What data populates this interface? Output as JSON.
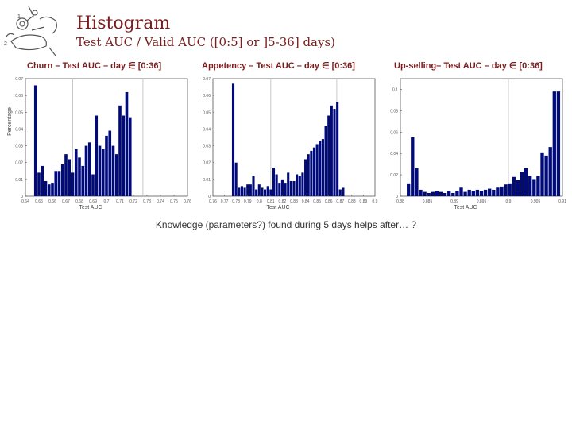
{
  "title": "Histogram",
  "subtitle": "Test AUC / Valid AUC ([0:5] or ]5-36] days)",
  "caption": "Knowledge (parameters?) found during 5 days helps after… ?",
  "colors": {
    "bar": "#000a78",
    "title": "#7a1d1d",
    "vline": "#bbbbbb"
  },
  "icons": {
    "logo": "cartoon-drawing-icon"
  },
  "chart_data": [
    {
      "type": "bar",
      "title": "Churn – Test AUC – day ∈ [0:36]",
      "xlabel": "Test AUC",
      "ylabel": "Percentage",
      "xlim": [
        0.64,
        0.76
      ],
      "ylim": [
        0,
        0.07
      ],
      "xticks": [
        "0.64",
        "0.65",
        "0.66",
        "0.67",
        "0.68",
        "0.69",
        "0.7",
        "0.71",
        "0.72",
        "0.73",
        "0.74",
        "0.75",
        "0.76"
      ],
      "yticks": [
        "0",
        "0.01",
        "0.02",
        "0.03",
        "0.04",
        "0.05",
        "0.06",
        "0.07"
      ],
      "vlines": [
        0.675,
        0.727
      ],
      "x": [
        0.6475,
        0.65,
        0.6525,
        0.655,
        0.6575,
        0.66,
        0.6625,
        0.665,
        0.6675,
        0.67,
        0.6725,
        0.675,
        0.6775,
        0.68,
        0.6825,
        0.685,
        0.6875,
        0.69,
        0.6925,
        0.695,
        0.6975,
        0.7,
        0.7025,
        0.705,
        0.7075,
        0.71,
        0.7125,
        0.715,
        0.7175
      ],
      "values": [
        0.066,
        0.014,
        0.018,
        0.009,
        0.007,
        0.008,
        0.015,
        0.015,
        0.019,
        0.025,
        0.022,
        0.014,
        0.028,
        0.023,
        0.018,
        0.03,
        0.032,
        0.013,
        0.048,
        0.03,
        0.028,
        0.036,
        0.039,
        0.03,
        0.025,
        0.054,
        0.048,
        0.062,
        0.047
      ]
    },
    {
      "type": "bar",
      "title": "Appetency – Test AUC – day ∈ [0:36]",
      "xlabel": "Test AUC",
      "ylabel": "",
      "xlim": [
        0.76,
        0.9
      ],
      "ylim": [
        0,
        0.07
      ],
      "xticks": [
        "0.76",
        "0.77",
        "0.78",
        "0.79",
        "0.8",
        "0.81",
        "0.82",
        "0.83",
        "0.84",
        "0.85",
        "0.86",
        "0.87",
        "0.88",
        "0.89",
        "0.9"
      ],
      "yticks": [
        "0",
        "0.01",
        "0.02",
        "0.03",
        "0.04",
        "0.05",
        "0.06",
        "0.07"
      ],
      "vlines": [
        0.81,
        0.867
      ],
      "x": [
        0.7775,
        0.78,
        0.7825,
        0.785,
        0.7875,
        0.79,
        0.7925,
        0.795,
        0.7975,
        0.8,
        0.8025,
        0.805,
        0.8075,
        0.81,
        0.8125,
        0.815,
        0.8175,
        0.82,
        0.8225,
        0.825,
        0.8275,
        0.83,
        0.8325,
        0.835,
        0.8375,
        0.84,
        0.8425,
        0.845,
        0.8475,
        0.85,
        0.8525,
        0.855,
        0.8575,
        0.86,
        0.8625,
        0.865,
        0.8675,
        0.87,
        0.8725
      ],
      "values": [
        0.067,
        0.02,
        0.005,
        0.006,
        0.005,
        0.007,
        0.007,
        0.012,
        0.004,
        0.007,
        0.005,
        0.004,
        0.006,
        0.004,
        0.017,
        0.013,
        0.008,
        0.01,
        0.008,
        0.014,
        0.009,
        0.009,
        0.013,
        0.012,
        0.014,
        0.022,
        0.025,
        0.027,
        0.029,
        0.031,
        0.033,
        0.034,
        0.042,
        0.048,
        0.054,
        0.052,
        0.056,
        0.004,
        0.005
      ]
    },
    {
      "type": "bar",
      "title": "Up-selling– Test AUC – day ∈ [0:36]",
      "xlabel": "Test AUC",
      "ylabel": "",
      "xlim": [
        0.88,
        0.91
      ],
      "ylim": [
        0,
        0.11
      ],
      "xticks": [
        "0.88",
        "0.885",
        "0.89",
        "0.895",
        "0.9",
        "0.905",
        "0.91"
      ],
      "yticks": [
        "0",
        "0.02",
        "0.04",
        "0.06",
        "0.08",
        "0.1"
      ],
      "vlines": [
        0.9
      ],
      "x": [
        0.8815,
        0.88225,
        0.883,
        0.88375,
        0.8845,
        0.88525,
        0.886,
        0.88675,
        0.8875,
        0.88825,
        0.889,
        0.88975,
        0.8905,
        0.89125,
        0.892,
        0.89275,
        0.8935,
        0.89425,
        0.895,
        0.89575,
        0.8965,
        0.89725,
        0.898,
        0.89875,
        0.8995,
        0.90025,
        0.901,
        0.90175,
        0.9025,
        0.90325,
        0.904,
        0.90475,
        0.9055,
        0.90625,
        0.907,
        0.90775,
        0.9085,
        0.90925
      ],
      "values": [
        0.012,
        0.055,
        0.026,
        0.006,
        0.004,
        0.003,
        0.004,
        0.005,
        0.004,
        0.003,
        0.005,
        0.003,
        0.005,
        0.008,
        0.004,
        0.006,
        0.005,
        0.006,
        0.005,
        0.006,
        0.007,
        0.006,
        0.008,
        0.009,
        0.011,
        0.012,
        0.018,
        0.015,
        0.023,
        0.026,
        0.019,
        0.016,
        0.019,
        0.041,
        0.038,
        0.046,
        0.098,
        0.098
      ]
    }
  ]
}
